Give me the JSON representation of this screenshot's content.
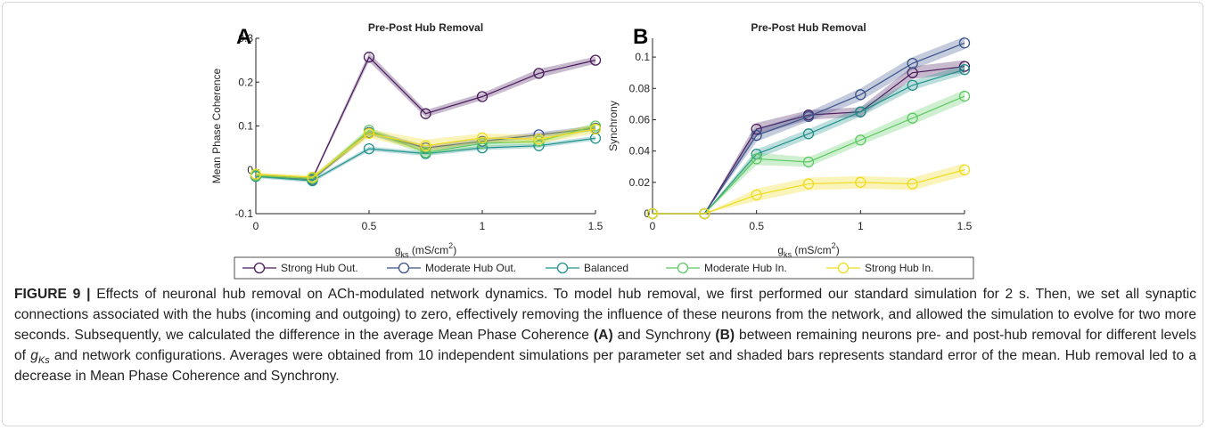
{
  "chart_data": [
    {
      "type": "line",
      "panel": "A",
      "title": "Pre-Post Hub Removal",
      "ylabel": "Mean Phase Coherence",
      "xlabel": {
        "symbol": "g",
        "sub": "ks",
        "unit": " (mS/cm",
        "sup": "2",
        "end": ")"
      },
      "x": [
        0,
        0.25,
        0.5,
        0.75,
        1,
        1.25,
        1.5
      ],
      "xlim": [
        0,
        1.5
      ],
      "xticks": [
        0,
        0.5,
        1,
        1.5
      ],
      "ylim": [
        -0.1,
        0.3
      ],
      "yticks": [
        -0.1,
        0,
        0.1,
        0.2,
        0.3
      ],
      "series": [
        {
          "name": "Strong Hub Out.",
          "color": "#4a1a5c",
          "values": [
            -0.013,
            -0.02,
            0.257,
            0.128,
            0.167,
            0.22,
            0.25
          ],
          "errors": [
            0.004,
            0.004,
            0.01,
            0.008,
            0.008,
            0.01,
            0.008
          ]
        },
        {
          "name": "Moderate Hub Out.",
          "color": "#3b528b",
          "values": [
            -0.013,
            -0.022,
            0.085,
            0.05,
            0.065,
            0.08,
            0.095
          ],
          "errors": [
            0.004,
            0.004,
            0.006,
            0.006,
            0.006,
            0.006,
            0.006
          ]
        },
        {
          "name": "Balanced",
          "color": "#21918c",
          "values": [
            -0.015,
            -0.025,
            0.048,
            0.037,
            0.05,
            0.055,
            0.072
          ],
          "errors": [
            0.004,
            0.004,
            0.005,
            0.005,
            0.005,
            0.005,
            0.005
          ]
        },
        {
          "name": "Moderate Hub In.",
          "color": "#5ec962",
          "values": [
            -0.013,
            -0.02,
            0.09,
            0.04,
            0.06,
            0.065,
            0.1
          ],
          "errors": [
            0.004,
            0.004,
            0.007,
            0.007,
            0.007,
            0.007,
            0.007
          ]
        },
        {
          "name": "Strong Hub In.",
          "color": "#f0dc1e",
          "values": [
            -0.01,
            -0.017,
            0.083,
            0.055,
            0.073,
            0.07,
            0.093
          ],
          "errors": [
            0.004,
            0.004,
            0.01,
            0.014,
            0.01,
            0.01,
            0.01
          ]
        }
      ]
    },
    {
      "type": "line",
      "panel": "B",
      "title": "Pre-Post Hub Removal",
      "ylabel": "Synchrony",
      "xlabel": {
        "symbol": "g",
        "sub": "ks",
        "unit": " (mS/cm",
        "sup": "2",
        "end": ")"
      },
      "x": [
        0,
        0.25,
        0.5,
        0.75,
        1,
        1.25,
        1.5
      ],
      "xlim": [
        0,
        1.5
      ],
      "xticks": [
        0,
        0.5,
        1,
        1.5
      ],
      "ylim": [
        0,
        0.112
      ],
      "yticks": [
        0,
        0.02,
        0.04,
        0.06,
        0.08,
        0.1
      ],
      "series": [
        {
          "name": "Strong Hub Out.",
          "color": "#4a1a5c",
          "values": [
            0,
            0,
            0.054,
            0.063,
            0.065,
            0.09,
            0.094
          ],
          "errors": [
            0,
            0,
            0.004,
            0.003,
            0.003,
            0.004,
            0.004
          ]
        },
        {
          "name": "Moderate Hub Out.",
          "color": "#3b528b",
          "values": [
            0,
            0,
            0.05,
            0.062,
            0.076,
            0.096,
            0.109
          ],
          "errors": [
            0,
            0,
            0.004,
            0.003,
            0.004,
            0.004,
            0.004
          ]
        },
        {
          "name": "Balanced",
          "color": "#21918c",
          "values": [
            0,
            0,
            0.038,
            0.051,
            0.065,
            0.082,
            0.092
          ],
          "errors": [
            0,
            0,
            0.003,
            0.003,
            0.003,
            0.003,
            0.003
          ]
        },
        {
          "name": "Moderate Hub In.",
          "color": "#5ec962",
          "values": [
            0,
            0,
            0.035,
            0.033,
            0.047,
            0.061,
            0.075
          ],
          "errors": [
            0,
            0,
            0.004,
            0.003,
            0.003,
            0.004,
            0.004
          ]
        },
        {
          "name": "Strong Hub In.",
          "color": "#f0dc1e",
          "values": [
            0,
            0,
            0.012,
            0.019,
            0.02,
            0.019,
            0.028
          ],
          "errors": [
            0,
            0,
            0.004,
            0.004,
            0.004,
            0.004,
            0.004
          ]
        }
      ]
    }
  ],
  "caption": [
    {
      "style": "bold",
      "text": "FIGURE 9 |"
    },
    {
      "style": "normal",
      "text": " Effects of neuronal hub removal on ACh-modulated network dynamics. To model hub removal, we first performed our standard simulation for 2 s. Then, we set all synaptic connections associated with the hubs (incoming and outgoing) to zero, effectively removing the influence of these neurons from the network, and allowed the simulation to evolve for two more seconds. Subsequently, we calculated the difference in the average Mean Phase Coherence "
    },
    {
      "style": "bold",
      "text": "(A)"
    },
    {
      "style": "normal",
      "text": " and Synchrony "
    },
    {
      "style": "bold",
      "text": "(B)"
    },
    {
      "style": "normal",
      "text": " between remaining neurons pre- and post-hub removal for different levels of "
    },
    {
      "style": "italic",
      "text": "g"
    },
    {
      "style": "italic-sub",
      "text": "Ks"
    },
    {
      "style": "normal",
      "text": " and network configurations. Averages were obtained from 10 independent simulations per parameter set and shaded bars represents standard error of the mean. Hub removal led to a decrease in Mean Phase Coherence and Synchrony."
    }
  ]
}
